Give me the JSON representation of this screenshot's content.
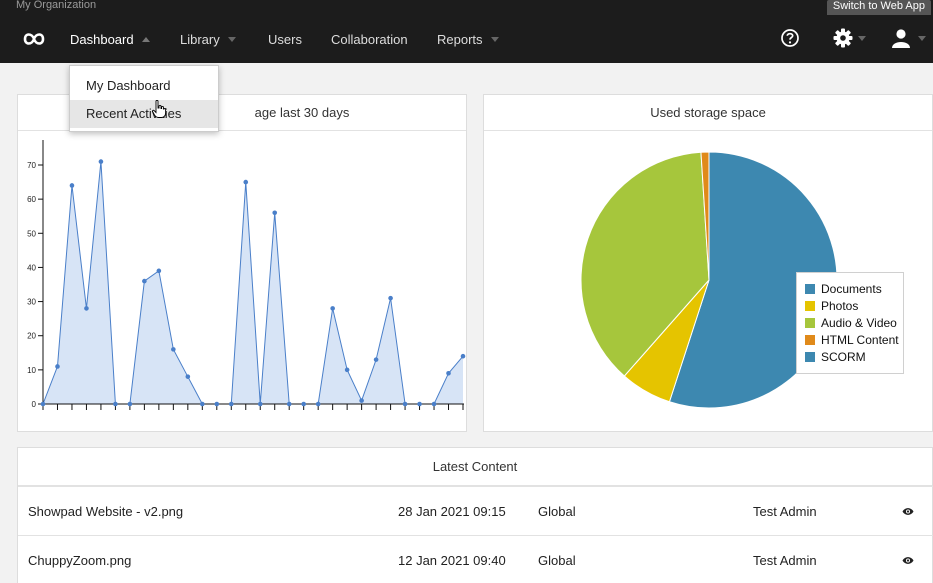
{
  "top": {
    "org": "My Organization",
    "switch_label": "Switch to Web App"
  },
  "nav": {
    "items": [
      {
        "label": "Dashboard"
      },
      {
        "label": "Library"
      },
      {
        "label": "Users"
      },
      {
        "label": "Collaboration"
      },
      {
        "label": "Reports"
      }
    ],
    "icons": [
      "infinity-logo",
      "help-icon",
      "gear-icon",
      "user-icon"
    ]
  },
  "dropdown": {
    "items": [
      "My Dashboard",
      "Recent Activities"
    ]
  },
  "usage_panel": {
    "title_visible": "age last 30 days"
  },
  "chart_data": [
    {
      "type": "area",
      "title": "age last 30 days",
      "y_ticks": [
        0,
        10,
        20,
        30,
        40,
        50,
        60,
        70
      ],
      "ylim": [
        0,
        75
      ],
      "values": [
        0,
        11,
        64,
        28,
        71,
        0,
        0,
        36,
        39,
        16,
        8,
        0,
        0,
        0,
        65,
        0,
        56,
        0,
        0,
        0,
        28,
        10,
        1,
        13,
        31,
        0,
        0,
        0,
        9,
        14
      ],
      "color": "#4a7fc9",
      "fill": "#d7e4f6"
    },
    {
      "type": "pie",
      "title": "Used storage space",
      "labels": [
        "Documents",
        "Photos",
        "Audio & Video",
        "HTML Content",
        "SCORM"
      ],
      "values": [
        55,
        6.5,
        37.5,
        1,
        0
      ],
      "colors": [
        "#3d88b0",
        "#e5c400",
        "#a6c63c",
        "#e08a1a",
        "#3d88b0"
      ],
      "legend_position": "bottom-right"
    }
  ],
  "storage_panel": {
    "title": "Used storage space"
  },
  "latest": {
    "title": "Latest Content",
    "rows": [
      {
        "name": "Showpad Website - v2.png",
        "date": "28 Jan 2021 09:15",
        "scope": "Global",
        "owner": "Test Admin"
      },
      {
        "name": "ChuppyZoom.png",
        "date": "12 Jan 2021 09:40",
        "scope": "Global",
        "owner": "Test Admin"
      }
    ]
  }
}
